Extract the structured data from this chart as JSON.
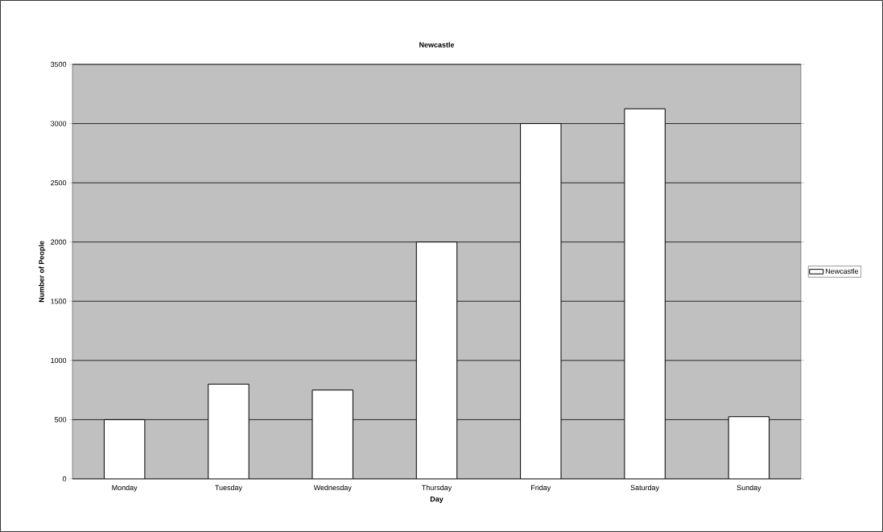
{
  "chart_data": {
    "type": "bar",
    "title": "Newcastle",
    "xlabel": "Day",
    "ylabel": "Number of People",
    "categories": [
      "Monday",
      "Tuesday",
      "Wednesday",
      "Thursday",
      "Friday",
      "Saturday",
      "Sunday"
    ],
    "series": [
      {
        "name": "Newcastle",
        "color": "#ffffff",
        "values": [
          500,
          800,
          750,
          2000,
          3000,
          3125,
          525
        ]
      }
    ],
    "ylim": [
      0,
      3500
    ],
    "yticks": [
      0,
      500,
      1000,
      1500,
      2000,
      2500,
      3000,
      3500
    ],
    "grid": "y",
    "legend": "right"
  }
}
